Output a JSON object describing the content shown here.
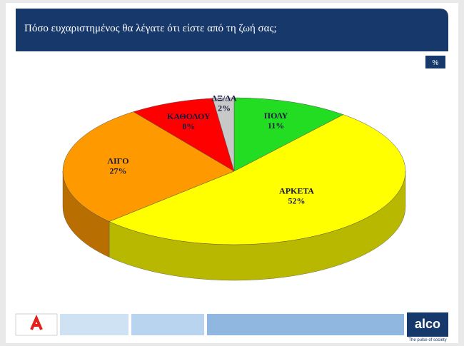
{
  "chart_data": {
    "type": "pie3d",
    "title": "Πόσο ευχαριστημένος θα λέγατε ότι είστε από τη ζωή σας;",
    "unit_label": "%",
    "categories": [
      "ΠΟΛΥ",
      "ΑΡΚΕΤΑ",
      "ΛΙΓΟ",
      "ΚΑΘΟΛΟΥ",
      "ΔΞ/ΔΑ"
    ],
    "values": [
      11,
      52,
      27,
      8,
      2
    ],
    "value_labels": [
      "11%",
      "52%",
      "27%",
      "8%",
      "2%"
    ],
    "colors": [
      "#22dd22",
      "#ffff00",
      "#ff9900",
      "#ff0000",
      "#c8c8c8"
    ]
  },
  "footer": {
    "brand": "alco",
    "tagline": "The pulse of society"
  }
}
